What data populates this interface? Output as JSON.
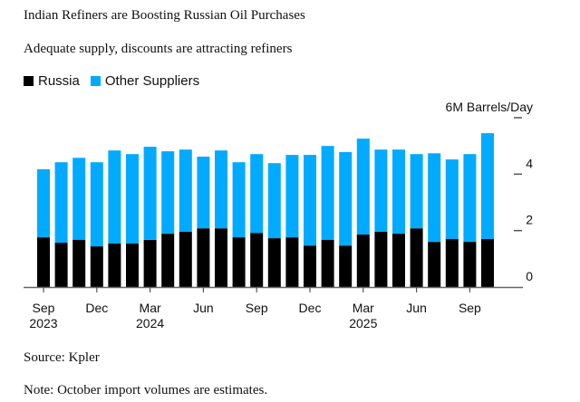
{
  "title": "Indian Refiners are Boosting Russian Oil Purchases",
  "subtitle": "Adequate supply, discounts are attracting refiners",
  "source": "Source: Kpler",
  "note": "Note: October import volumes are estimates.",
  "colors": {
    "russia": "#000000",
    "other": "#00AAFF"
  },
  "chart_data": {
    "type": "bar",
    "stacked": true,
    "title": "Indian Refiners are Boosting Russian Oil Purchases",
    "subtitle": "Adequate supply, discounts are attracting refiners",
    "xlabel": "",
    "ylabel": "M Barrels/Day",
    "y_unit_label": "6M Barrels/Day",
    "ylim": [
      0,
      6
    ],
    "yticks": [
      0,
      2,
      4,
      6
    ],
    "ytick_labels": [
      "0",
      "2",
      "4",
      "6M Barrels/Day"
    ],
    "y_axis_side": "right",
    "grid": false,
    "legend": {
      "placement": "top-left",
      "entries": [
        "Russia",
        "Other Suppliers"
      ]
    },
    "categories": [
      "Sep 2023",
      "Oct 2023",
      "Nov 2023",
      "Dec 2023",
      "Jan 2024",
      "Feb 2024",
      "Mar 2024",
      "Apr 2024",
      "May 2024",
      "Jun 2024",
      "Jul 2024",
      "Aug 2024",
      "Sep 2024",
      "Oct 2024",
      "Nov 2024",
      "Dec 2024",
      "Jan 2025",
      "Feb 2025",
      "Mar 2025",
      "Apr 2025",
      "May 2025",
      "Jun 2025",
      "Jul 2025",
      "Aug 2025",
      "Sep 2025",
      "Oct 2025"
    ],
    "xtick_labels": [
      {
        "index": 0,
        "month": "Sep",
        "year": "2023"
      },
      {
        "index": 3,
        "month": "Dec",
        "year": ""
      },
      {
        "index": 6,
        "month": "Mar",
        "year": "2024"
      },
      {
        "index": 9,
        "month": "Jun",
        "year": ""
      },
      {
        "index": 12,
        "month": "Sep",
        "year": ""
      },
      {
        "index": 15,
        "month": "Dec",
        "year": ""
      },
      {
        "index": 18,
        "month": "Mar",
        "year": "2025"
      },
      {
        "index": 21,
        "month": "Jun",
        "year": ""
      },
      {
        "index": 24,
        "month": "Sep",
        "year": ""
      }
    ],
    "series": [
      {
        "name": "Russia",
        "color": "#000000",
        "values": [
          1.76,
          1.57,
          1.67,
          1.44,
          1.54,
          1.54,
          1.67,
          1.89,
          1.96,
          2.08,
          2.08,
          1.76,
          1.92,
          1.73,
          1.76,
          1.47,
          1.67,
          1.47,
          1.86,
          1.96,
          1.89,
          2.08,
          1.6,
          1.7,
          1.6,
          1.7
        ]
      },
      {
        "name": "Other Suppliers",
        "color": "#00AAFF",
        "values": [
          2.41,
          2.85,
          2.91,
          2.98,
          3.3,
          3.17,
          3.3,
          2.92,
          2.91,
          2.54,
          2.76,
          2.66,
          2.79,
          2.66,
          2.92,
          3.21,
          3.33,
          3.31,
          3.4,
          2.91,
          2.98,
          2.63,
          3.14,
          2.82,
          3.11,
          3.75
        ]
      }
    ]
  }
}
